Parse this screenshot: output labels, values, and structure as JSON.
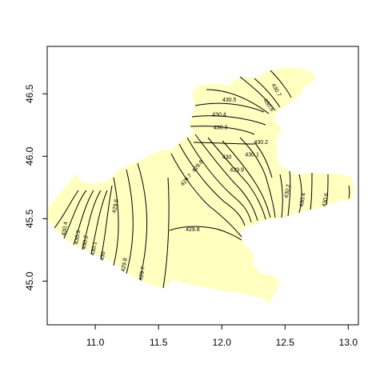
{
  "map": {
    "land_color": "#FFFFC0",
    "contour_color": "#000000",
    "frame_color": "#000000",
    "xlim": [
      10.62,
      13.08
    ],
    "ylim": [
      44.65,
      46.88
    ]
  },
  "axes": {
    "x_ticks": [
      {
        "value": 11.0,
        "label": "11.0"
      },
      {
        "value": 11.5,
        "label": "11.5"
      },
      {
        "value": 12.0,
        "label": "12.0"
      },
      {
        "value": 12.5,
        "label": "12.5"
      },
      {
        "value": 13.0,
        "label": "13.0"
      }
    ],
    "y_ticks": [
      {
        "value": 45.0,
        "label": "45.0"
      },
      {
        "value": 45.5,
        "label": "45.5"
      },
      {
        "value": 46.0,
        "label": "46.0"
      },
      {
        "value": 46.5,
        "label": "46.5"
      }
    ]
  },
  "contour_labels": [
    {
      "text": "430.7",
      "lon": 12.43,
      "lat": 46.53,
      "angle": 60
    },
    {
      "text": "430.6",
      "lon": 12.37,
      "lat": 46.41,
      "angle": 55
    },
    {
      "text": "430.5",
      "lon": 12.06,
      "lat": 46.45,
      "angle": 0
    },
    {
      "text": "430.4",
      "lon": 11.98,
      "lat": 46.33,
      "angle": 0
    },
    {
      "text": "430.3",
      "lon": 11.99,
      "lat": 46.23,
      "angle": 0
    },
    {
      "text": "430.2",
      "lon": 12.31,
      "lat": 46.11,
      "angle": 0
    },
    {
      "text": "430.1",
      "lon": 12.24,
      "lat": 46.01,
      "angle": 0
    },
    {
      "text": "430",
      "lon": 12.04,
      "lat": 45.99,
      "angle": 0
    },
    {
      "text": "429.9",
      "lon": 12.12,
      "lat": 45.89,
      "angle": 0
    },
    {
      "text": "429.8",
      "lon": 11.81,
      "lat": 45.92,
      "angle": -50
    },
    {
      "text": "429.7",
      "lon": 11.72,
      "lat": 45.81,
      "angle": -50
    },
    {
      "text": "430.2",
      "lon": 12.52,
      "lat": 45.72,
      "angle": -80
    },
    {
      "text": "430.4",
      "lon": 12.64,
      "lat": 45.65,
      "angle": -80
    },
    {
      "text": "430.6",
      "lon": 12.82,
      "lat": 45.65,
      "angle": -80
    },
    {
      "text": "429.6",
      "lon": 11.16,
      "lat": 45.6,
      "angle": -80
    },
    {
      "text": "430.4",
      "lon": 10.76,
      "lat": 45.42,
      "angle": -80
    },
    {
      "text": "430.3",
      "lon": 10.86,
      "lat": 45.35,
      "angle": -80
    },
    {
      "text": "430.2",
      "lon": 10.92,
      "lat": 45.31,
      "angle": -80
    },
    {
      "text": "430.1",
      "lon": 10.99,
      "lat": 45.26,
      "angle": -80
    },
    {
      "text": "430",
      "lon": 11.06,
      "lat": 45.2,
      "angle": -80
    },
    {
      "text": "429.8",
      "lon": 11.23,
      "lat": 45.13,
      "angle": -80
    },
    {
      "text": "429.7",
      "lon": 11.37,
      "lat": 45.06,
      "angle": -80
    },
    {
      "text": "429.8",
      "lon": 11.77,
      "lat": 45.41,
      "angle": 0
    }
  ]
}
